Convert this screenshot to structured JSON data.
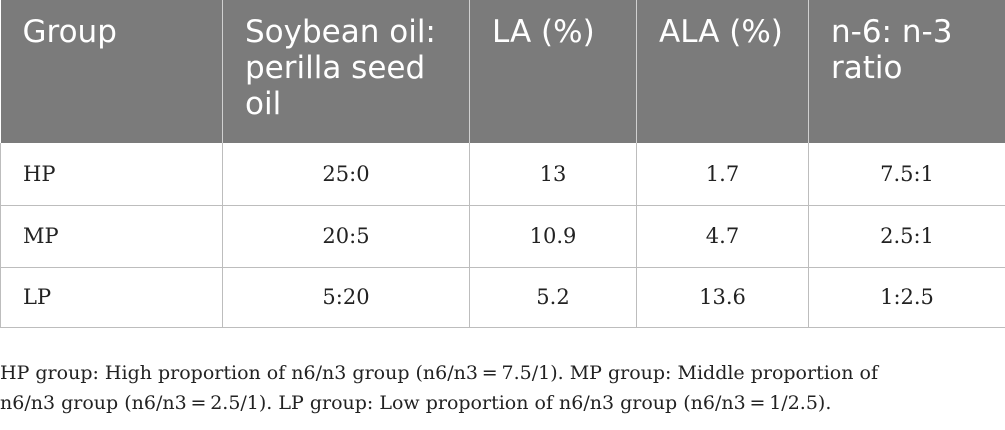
{
  "table": {
    "headers": [
      "Group",
      "Soybean oil: perilla seed oil",
      "LA (%)",
      "ALA (%)",
      "n-6: n-3 ratio"
    ],
    "rows": [
      [
        "HP",
        "25:0",
        "13",
        "1.7",
        "7.5:1"
      ],
      [
        "MP",
        "20:5",
        "10.9",
        "4.7",
        "2.5:1"
      ],
      [
        "LP",
        "5:20",
        "5.2",
        "13.6",
        "1:2.5"
      ]
    ]
  },
  "footnote": {
    "line1": "HP group: High proportion of n6/n3 group (n6/n3 = 7.5/1). MP group: Middle proportion of",
    "line2": "n6/n3 group (n6/n3 = 2.5/1). LP group: Low proportion of n6/n3 group (n6/n3 = 1/2.5)."
  },
  "colors": {
    "header_background": "#7b7b7b",
    "header_text": "#ffffff",
    "grid_lines": "#bdbdbd"
  }
}
